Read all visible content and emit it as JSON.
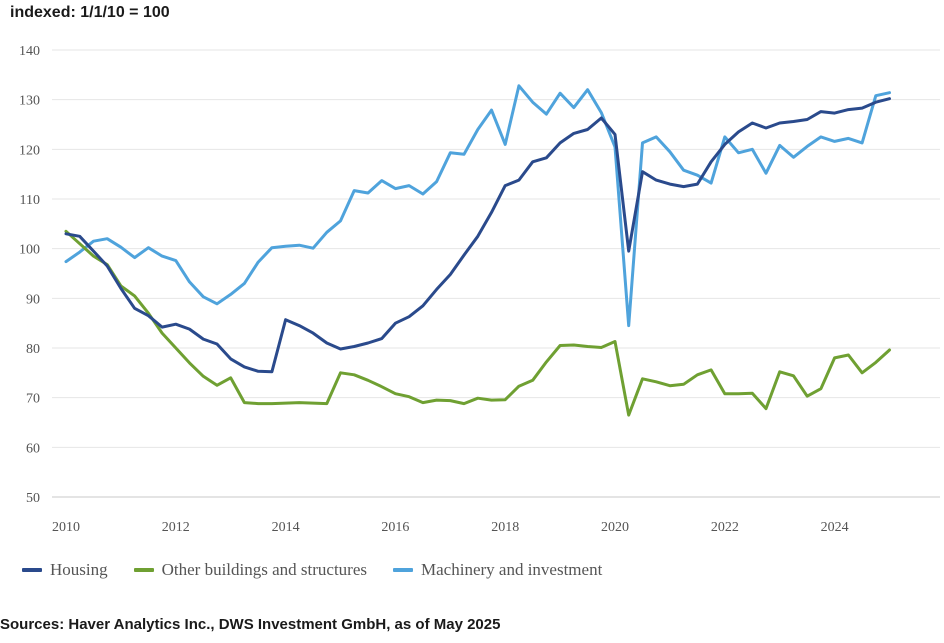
{
  "chart_data": {
    "type": "line",
    "unit_label": "indexed: 1/1/10 = 100",
    "source": "Sources: Haver Analytics Inc., DWS Investment GmbH, as of May 2025",
    "ylim": [
      50,
      140
    ],
    "yticks": [
      140,
      130,
      120,
      110,
      100,
      90,
      80,
      70,
      60,
      50
    ],
    "xlim": [
      2010,
      2025.3
    ],
    "xticks": [
      2010,
      2012,
      2014,
      2016,
      2018,
      2020,
      2022,
      2024
    ],
    "grid": true,
    "legend_position": "bottom",
    "x": [
      2010.0,
      2010.25,
      2010.5,
      2010.75,
      2011.0,
      2011.25,
      2011.5,
      2011.75,
      2012.0,
      2012.25,
      2012.5,
      2012.75,
      2013.0,
      2013.25,
      2013.5,
      2013.75,
      2014.0,
      2014.25,
      2014.5,
      2014.75,
      2015.0,
      2015.25,
      2015.5,
      2015.75,
      2016.0,
      2016.25,
      2016.5,
      2016.75,
      2017.0,
      2017.25,
      2017.5,
      2017.75,
      2018.0,
      2018.25,
      2018.5,
      2018.75,
      2019.0,
      2019.25,
      2019.5,
      2019.75,
      2020.0,
      2020.25,
      2020.5,
      2020.75,
      2021.0,
      2021.25,
      2021.5,
      2021.75,
      2022.0,
      2022.25,
      2022.5,
      2022.75,
      2023.0,
      2023.25,
      2023.5,
      2023.75,
      2024.0,
      2024.25,
      2024.5,
      2024.75,
      2025.0
    ],
    "series": [
      {
        "name": "Housing",
        "color": "#2a4a8c",
        "values": [
          103,
          102.5,
          99.5,
          96.5,
          92,
          88,
          86.5,
          84.2,
          84.8,
          83.8,
          81.8,
          80.8,
          77.8,
          76.2,
          75.3,
          75.2,
          85.7,
          84.5,
          83,
          81,
          79.8,
          80.3,
          81,
          81.9,
          85,
          86.3,
          88.5,
          91.8,
          94.8,
          98.7,
          102.5,
          107.3,
          112.7,
          113.8,
          117.5,
          118.3,
          121.3,
          123.2,
          124,
          126.3,
          123,
          99.5,
          115.5,
          113.8,
          113,
          112.5,
          113,
          117.5,
          121,
          123.5,
          125.3,
          124.3,
          125.3,
          125.6,
          126,
          127.6,
          127.3,
          128,
          128.3,
          129.5,
          130.2
        ]
      },
      {
        "name": "Other buildings and structures",
        "color": "#6fa032",
        "values": [
          103.5,
          101,
          98.5,
          96.8,
          92.5,
          90.5,
          87,
          83,
          80,
          77,
          74.3,
          72.5,
          74,
          69,
          68.8,
          68.8,
          68.9,
          69,
          68.9,
          68.8,
          75,
          74.6,
          73.5,
          72.2,
          70.8,
          70.2,
          69,
          69.5,
          69.4,
          68.8,
          69.9,
          69.5,
          69.6,
          72.3,
          73.5,
          77.2,
          80.5,
          80.6,
          80.3,
          80.1,
          81.3,
          66.5,
          73.8,
          73.2,
          72.4,
          72.7,
          74.6,
          75.6,
          70.8,
          70.8,
          70.9,
          67.8,
          75.2,
          74.4,
          70.3,
          71.8,
          78,
          78.6,
          75,
          77.1,
          79.6
        ]
      },
      {
        "name": "Machinery and investment",
        "color": "#4fa3dc",
        "values": [
          97.4,
          99.3,
          101.5,
          102,
          100.3,
          98.2,
          100.2,
          98.5,
          97.6,
          93.3,
          90.3,
          88.9,
          90.8,
          93,
          97.3,
          100.2,
          100.5,
          100.7,
          100.1,
          103.3,
          105.6,
          111.7,
          111.2,
          113.7,
          112.1,
          112.7,
          111,
          113.5,
          119.3,
          119,
          124,
          127.9,
          121,
          132.8,
          129.5,
          127.1,
          131.3,
          128.4,
          132,
          127.4,
          120.5,
          84.5,
          121.3,
          122.5,
          119.5,
          115.8,
          114.8,
          113.2,
          122.5,
          119.3,
          120,
          115.2,
          120.8,
          118.4,
          120.6,
          122.5,
          121.6,
          122.2,
          121.3,
          130.8,
          131.4
        ]
      }
    ]
  }
}
